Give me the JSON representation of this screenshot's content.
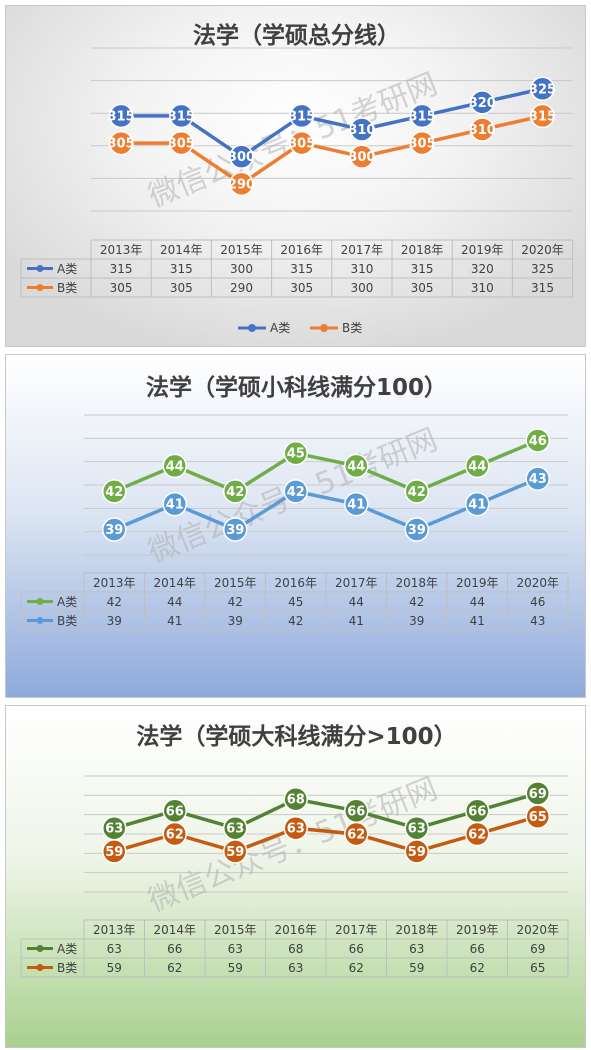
{
  "watermark": "微信公众号：51考研网",
  "chart_data": [
    {
      "type": "line",
      "title": "法学（学硕总分线）",
      "categories": [
        "2013年",
        "2014年",
        "2015年",
        "2016年",
        "2017年",
        "2018年",
        "2019年",
        "2020年"
      ],
      "series": [
        {
          "name": "A类",
          "color": "#4472c4",
          "values": [
            315,
            315,
            300,
            315,
            310,
            315,
            320,
            325
          ]
        },
        {
          "name": "B类",
          "color": "#ed7d31",
          "values": [
            305,
            305,
            290,
            305,
            300,
            305,
            310,
            315
          ]
        }
      ],
      "ylim": [
        280,
        340
      ],
      "grid": true,
      "data_table": true,
      "legend": "bottom"
    },
    {
      "type": "line",
      "title": "法学（学硕小科线满分100）",
      "categories": [
        "2013年",
        "2014年",
        "2015年",
        "2016年",
        "2017年",
        "2018年",
        "2019年",
        "2020年"
      ],
      "series": [
        {
          "name": "A类",
          "color": "#70ad47",
          "values": [
            42,
            44,
            42,
            45,
            44,
            42,
            44,
            46
          ]
        },
        {
          "name": "B类",
          "color": "#5b9bd5",
          "values": [
            39,
            41,
            39,
            42,
            41,
            39,
            41,
            43
          ]
        }
      ],
      "ylim": [
        37,
        48
      ],
      "grid": true,
      "data_table": true
    },
    {
      "type": "line",
      "title": "法学（学硕大科线满分>100）",
      "categories": [
        "2013年",
        "2014年",
        "2015年",
        "2016年",
        "2017年",
        "2018年",
        "2019年",
        "2020年"
      ],
      "series": [
        {
          "name": "A类",
          "color": "#548235",
          "values": [
            63,
            66,
            63,
            68,
            66,
            63,
            66,
            69
          ]
        },
        {
          "name": "B类",
          "color": "#c55a11",
          "values": [
            59,
            62,
            59,
            63,
            62,
            59,
            62,
            65
          ]
        }
      ],
      "ylim": [
        52,
        72
      ],
      "grid": true,
      "data_table": true
    }
  ]
}
